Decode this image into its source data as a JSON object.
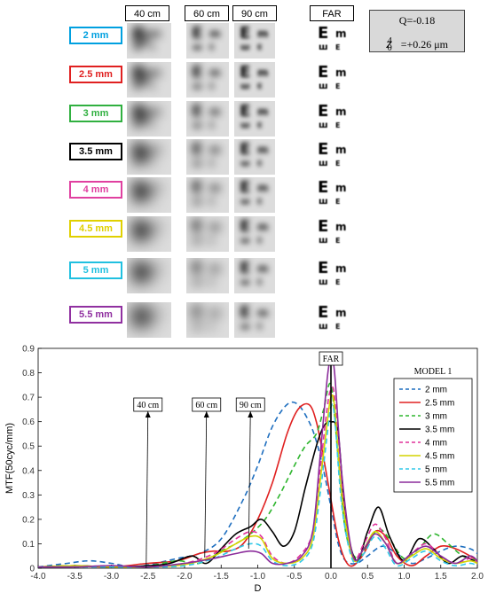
{
  "figure": {
    "columns": [
      "40 cm",
      "60 cm",
      "90 cm",
      "FAR"
    ],
    "pupils": [
      {
        "label": "2 mm",
        "color": "#00a0e0"
      },
      {
        "label": "2.5 mm",
        "color": "#e02020"
      },
      {
        "label": "3 mm",
        "color": "#30b040"
      },
      {
        "label": "3.5 mm",
        "color": "#000000"
      },
      {
        "label": "4 mm",
        "color": "#e040a0"
      },
      {
        "label": "4.5 mm",
        "color": "#e0d000"
      },
      {
        "label": "5 mm",
        "color": "#20c0e0"
      },
      {
        "label": "5.5 mm",
        "color": "#9030a0"
      }
    ],
    "info": {
      "q": "Q=-0.18",
      "z": "Z",
      "z_sup": "4",
      "z_sub": "0",
      "z_value": "=+0.26 μm"
    },
    "chart_annotations": {
      "40cm": "40 cm",
      "60cm": "60 cm",
      "90cm": "90 cm",
      "far": "FAR"
    }
  },
  "chart_data": {
    "type": "line",
    "xlabel": "D",
    "ylabel": "MTF(50cyc/mm)",
    "xlim": [
      -4.0,
      2.0
    ],
    "ylim": [
      0,
      0.9
    ],
    "xticks": [
      "-4.0",
      "-3.5",
      "-3.0",
      "-2.5",
      "-2.0",
      "-1.5",
      "-1.0",
      "-0.5",
      "0.0",
      "0.5",
      "1.0",
      "1.5",
      "2.0"
    ],
    "yticks": [
      "0",
      "0.1",
      "0.2",
      "0.3",
      "0.4",
      "0.5",
      "0.6",
      "0.7",
      "0.8",
      "0.9"
    ],
    "legend_title": "MODEL 1",
    "legend_position": "top-right",
    "series": [
      {
        "name": "2 mm",
        "color": "#1f6fbf",
        "dash": "6,4",
        "x": [
          -4.0,
          -3.6,
          -3.3,
          -3.0,
          -2.7,
          -2.4,
          -2.1,
          -1.8,
          -1.5,
          -1.2,
          -1.0,
          -0.8,
          -0.6,
          -0.45,
          -0.3,
          -0.2,
          -0.1,
          0.0,
          0.1,
          0.2,
          0.35,
          0.5,
          0.7,
          0.9,
          1.1,
          1.3,
          1.5,
          1.7,
          1.9,
          2.0
        ],
        "y": [
          0.005,
          0.02,
          0.03,
          0.02,
          0.005,
          0.02,
          0.04,
          0.06,
          0.12,
          0.28,
          0.42,
          0.58,
          0.67,
          0.67,
          0.6,
          0.52,
          0.4,
          0.25,
          0.1,
          0.03,
          0.02,
          0.05,
          0.09,
          0.06,
          0.02,
          0.04,
          0.07,
          0.09,
          0.08,
          0.06
        ]
      },
      {
        "name": "2.5 mm",
        "color": "#e02020",
        "dash": "",
        "x": [
          -4.0,
          -3.5,
          -3.0,
          -2.5,
          -2.1,
          -1.8,
          -1.6,
          -1.4,
          -1.2,
          -1.0,
          -0.8,
          -0.6,
          -0.45,
          -0.3,
          -0.2,
          -0.1,
          0.0,
          0.1,
          0.2,
          0.3,
          0.45,
          0.6,
          0.75,
          0.9,
          1.1,
          1.3,
          1.5,
          1.7,
          1.9,
          2.0
        ],
        "y": [
          0.005,
          0.01,
          0.005,
          0.02,
          0.03,
          0.06,
          0.07,
          0.07,
          0.1,
          0.2,
          0.35,
          0.55,
          0.65,
          0.67,
          0.6,
          0.45,
          0.28,
          0.12,
          0.03,
          0.01,
          0.06,
          0.15,
          0.13,
          0.05,
          0.01,
          0.05,
          0.09,
          0.08,
          0.05,
          0.03
        ]
      },
      {
        "name": "3 mm",
        "color": "#2db52d",
        "dash": "6,4",
        "x": [
          -4.0,
          -3.5,
          -3.0,
          -2.5,
          -2.1,
          -1.8,
          -1.5,
          -1.3,
          -1.1,
          -0.9,
          -0.7,
          -0.5,
          -0.35,
          -0.2,
          -0.1,
          0.0,
          0.1,
          0.2,
          0.35,
          0.5,
          0.65,
          0.8,
          1.0,
          1.2,
          1.4,
          1.6,
          1.8,
          2.0
        ],
        "y": [
          0.005,
          0.01,
          0.005,
          0.01,
          0.03,
          0.02,
          0.07,
          0.1,
          0.14,
          0.2,
          0.3,
          0.42,
          0.5,
          0.55,
          0.65,
          0.75,
          0.45,
          0.15,
          0.04,
          0.1,
          0.16,
          0.12,
          0.04,
          0.08,
          0.14,
          0.1,
          0.05,
          0.03
        ]
      },
      {
        "name": "3.5 mm",
        "color": "#000000",
        "dash": "",
        "x": [
          -4.0,
          -3.5,
          -3.0,
          -2.5,
          -2.2,
          -1.9,
          -1.7,
          -1.5,
          -1.3,
          -1.1,
          -0.95,
          -0.8,
          -0.65,
          -0.5,
          -0.35,
          -0.2,
          -0.1,
          0.0,
          0.1,
          0.2,
          0.35,
          0.5,
          0.65,
          0.8,
          1.0,
          1.2,
          1.4,
          1.6,
          1.8,
          2.0
        ],
        "y": [
          0.005,
          0.01,
          0.005,
          0.01,
          0.02,
          0.05,
          0.02,
          0.08,
          0.14,
          0.17,
          0.2,
          0.15,
          0.09,
          0.15,
          0.33,
          0.5,
          0.58,
          0.6,
          0.55,
          0.2,
          0.03,
          0.15,
          0.25,
          0.13,
          0.03,
          0.12,
          0.08,
          0.02,
          0.05,
          0.02
        ]
      },
      {
        "name": "4 mm",
        "color": "#e0309a",
        "dash": "6,4",
        "x": [
          -4.0,
          -3.5,
          -3.0,
          -2.5,
          -2.0,
          -1.6,
          -1.3,
          -1.1,
          -0.95,
          -0.8,
          -0.6,
          -0.4,
          -0.25,
          -0.15,
          -0.05,
          0.0,
          0.05,
          0.15,
          0.3,
          0.45,
          0.6,
          0.75,
          0.9,
          1.1,
          1.3,
          1.5,
          1.7,
          1.9,
          2.0
        ],
        "y": [
          0.005,
          0.005,
          0.01,
          0.005,
          0.02,
          0.06,
          0.12,
          0.15,
          0.13,
          0.05,
          0.02,
          0.06,
          0.15,
          0.4,
          0.66,
          0.73,
          0.7,
          0.35,
          0.05,
          0.1,
          0.18,
          0.12,
          0.02,
          0.06,
          0.1,
          0.05,
          0.02,
          0.04,
          0.02
        ]
      },
      {
        "name": "4.5 mm",
        "color": "#d4d400",
        "dash": "",
        "x": [
          -4.0,
          -3.5,
          -3.0,
          -2.5,
          -2.0,
          -1.6,
          -1.3,
          -1.1,
          -0.95,
          -0.8,
          -0.6,
          -0.4,
          -0.25,
          -0.15,
          -0.05,
          0.0,
          0.05,
          0.15,
          0.3,
          0.45,
          0.6,
          0.75,
          0.9,
          1.1,
          1.3,
          1.5,
          1.7,
          1.9,
          2.0
        ],
        "y": [
          0.005,
          0.01,
          0.005,
          0.005,
          0.015,
          0.05,
          0.1,
          0.13,
          0.12,
          0.04,
          0.02,
          0.04,
          0.12,
          0.35,
          0.6,
          0.7,
          0.66,
          0.3,
          0.04,
          0.08,
          0.15,
          0.1,
          0.02,
          0.05,
          0.08,
          0.04,
          0.02,
          0.03,
          0.02
        ]
      },
      {
        "name": "5 mm",
        "color": "#30c8e8",
        "dash": "6,4",
        "x": [
          -4.0,
          -3.5,
          -3.0,
          -2.5,
          -2.0,
          -1.6,
          -1.3,
          -1.1,
          -0.95,
          -0.8,
          -0.6,
          -0.4,
          -0.25,
          -0.15,
          -0.05,
          0.0,
          0.05,
          0.15,
          0.3,
          0.45,
          0.6,
          0.75,
          0.9,
          1.1,
          1.3,
          1.5,
          1.7,
          1.9,
          2.0
        ],
        "y": [
          0.005,
          0.005,
          0.005,
          0.005,
          0.01,
          0.04,
          0.08,
          0.1,
          0.09,
          0.03,
          0.01,
          0.03,
          0.1,
          0.3,
          0.55,
          0.66,
          0.62,
          0.25,
          0.03,
          0.06,
          0.13,
          0.08,
          0.01,
          0.04,
          0.07,
          0.03,
          0.01,
          0.02,
          0.01
        ]
      },
      {
        "name": "5.5 mm",
        "color": "#8b2c9b",
        "dash": "",
        "x": [
          -4.0,
          -3.5,
          -3.0,
          -2.5,
          -2.0,
          -1.6,
          -1.3,
          -1.1,
          -0.95,
          -0.8,
          -0.6,
          -0.4,
          -0.25,
          -0.15,
          -0.05,
          0.0,
          0.05,
          0.15,
          0.3,
          0.45,
          0.6,
          0.75,
          0.9,
          1.1,
          1.3,
          1.5,
          1.7,
          1.9,
          2.0
        ],
        "y": [
          0.005,
          0.005,
          0.01,
          0.005,
          0.02,
          0.04,
          0.06,
          0.07,
          0.06,
          0.02,
          0.02,
          0.05,
          0.15,
          0.45,
          0.78,
          0.85,
          0.8,
          0.38,
          0.05,
          0.08,
          0.14,
          0.1,
          0.02,
          0.06,
          0.09,
          0.05,
          0.02,
          0.05,
          0.03
        ]
      }
    ],
    "annotations": [
      {
        "label": "40 cm",
        "x": -2.5
      },
      {
        "label": "60 cm",
        "x": -1.7
      },
      {
        "label": "90 cm",
        "x": -1.1
      },
      {
        "label": "FAR",
        "x": 0.0
      }
    ]
  }
}
